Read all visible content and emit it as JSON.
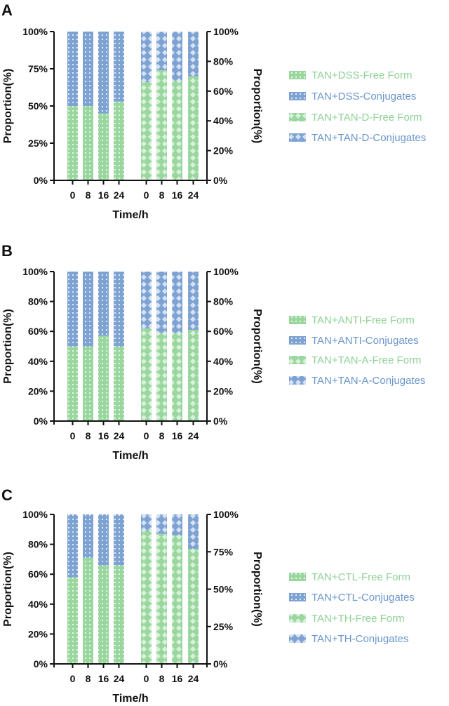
{
  "colors": {
    "free": "#9ad79f",
    "conj": "#7ea3d3",
    "free_text": "#8ed195",
    "conj_text": "#6b96cc",
    "axis": "#111111"
  },
  "chart_data": [
    {
      "type": "bar",
      "stacked": true,
      "panel": "A",
      "xlabel": "Time/h",
      "ylabel_left": "Proportion(%)",
      "ylabel_right": "Proportion(%)",
      "left_ticks": [
        "0%",
        "25%",
        "50%",
        "75%",
        "100%"
      ],
      "right_ticks": [
        "0%",
        "20%",
        "40%",
        "60%",
        "80%",
        "100%"
      ],
      "ylim": [
        0,
        100
      ],
      "groups": [
        {
          "pattern": "grid",
          "categories": [
            "0",
            "8",
            "16",
            "24"
          ],
          "free": [
            50,
            50,
            45,
            53
          ],
          "conjugates": [
            50,
            50,
            55,
            47
          ]
        },
        {
          "pattern": "diamond",
          "categories": [
            "0",
            "8",
            "16",
            "24"
          ],
          "free": [
            66,
            74,
            67,
            70
          ],
          "conjugates": [
            34,
            26,
            33,
            30
          ]
        }
      ],
      "legend": [
        "TAN+DSS-Free Form",
        "TAN+DSS-Conjugates",
        "TAN+TAN-D-Free Form",
        "TAN+TAN-D-Conjugates"
      ]
    },
    {
      "type": "bar",
      "stacked": true,
      "panel": "B",
      "xlabel": "Time/h",
      "ylabel_left": "Proportion(%)",
      "ylabel_right": "Proportion(%)",
      "left_ticks": [
        "0%",
        "20%",
        "40%",
        "60%",
        "80%",
        "100%"
      ],
      "right_ticks": [
        "0%",
        "20%",
        "40%",
        "60%",
        "80%",
        "100%"
      ],
      "ylim": [
        0,
        100
      ],
      "groups": [
        {
          "pattern": "grid",
          "categories": [
            "0",
            "8",
            "16",
            "24"
          ],
          "free": [
            50,
            50,
            57,
            50
          ],
          "conjugates": [
            50,
            50,
            43,
            50
          ]
        },
        {
          "pattern": "diamond",
          "categories": [
            "0",
            "8",
            "16",
            "24"
          ],
          "free": [
            62,
            59,
            59,
            61
          ],
          "conjugates": [
            38,
            41,
            41,
            39
          ]
        }
      ],
      "legend": [
        "TAN+ANTI-Free Form",
        "TAN+ANTI-Conjugates",
        "TAN+TAN-A-Free Form",
        "TAN+TAN-A-Conjugates"
      ]
    },
    {
      "type": "bar",
      "stacked": true,
      "panel": "C",
      "xlabel": "Time/h",
      "ylabel_left": "Proportion(%)",
      "ylabel_right": "Proportion(%)",
      "left_ticks": [
        "0%",
        "20%",
        "40%",
        "60%",
        "80%",
        "100%"
      ],
      "right_ticks": [
        "0%",
        "25%",
        "50%",
        "75%",
        "100%"
      ],
      "ylim": [
        0,
        100
      ],
      "groups": [
        {
          "pattern": "grid",
          "categories": [
            "0",
            "8",
            "16",
            "24"
          ],
          "free": [
            58,
            71,
            66,
            66
          ],
          "conjugates": [
            42,
            29,
            34,
            34
          ]
        },
        {
          "pattern": "diamond",
          "categories": [
            "0",
            "8",
            "16",
            "24"
          ],
          "free": [
            89,
            87,
            86,
            77
          ],
          "conjugates": [
            11,
            13,
            14,
            23
          ]
        }
      ],
      "legend": [
        "TAN+CTL-Free Form",
        "TAN+CTL-Conjugates",
        "TAN+TH-Free Form",
        "TAN+TH-Conjugates"
      ]
    }
  ]
}
